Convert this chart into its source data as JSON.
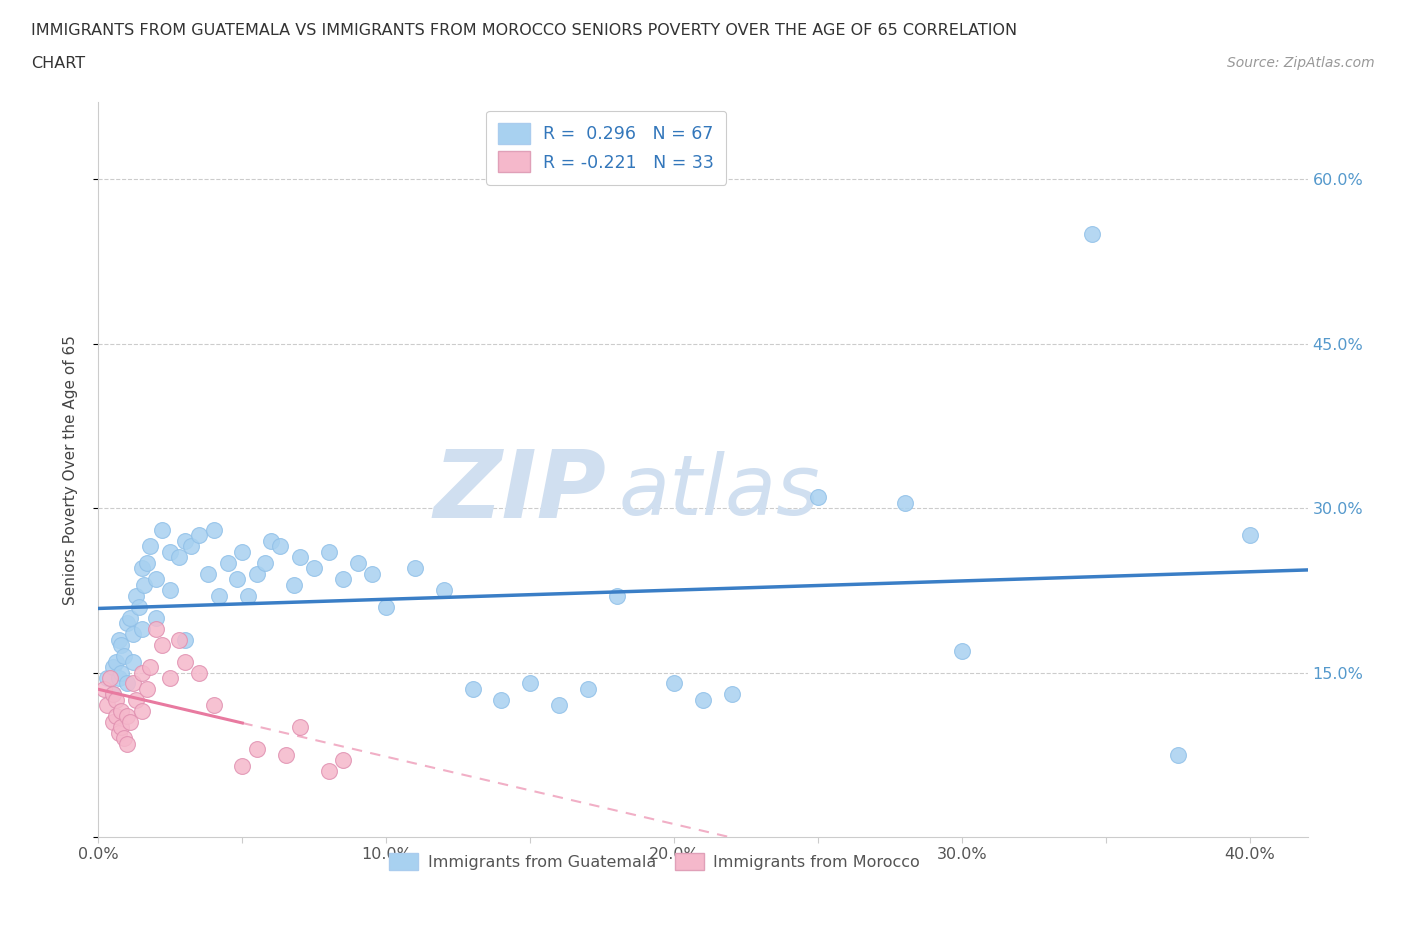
{
  "title_line1": "IMMIGRANTS FROM GUATEMALA VS IMMIGRANTS FROM MOROCCO SENIORS POVERTY OVER THE AGE OF 65 CORRELATION",
  "title_line2": "CHART",
  "source": "Source: ZipAtlas.com",
  "ylabel": "Seniors Poverty Over the Age of 65",
  "xlim": [
    0,
    42
  ],
  "ylim": [
    0,
    67
  ],
  "R_guatemala": 0.296,
  "N_guatemala": 67,
  "R_morocco": -0.221,
  "N_morocco": 33,
  "color_guatemala": "#a8d1f0",
  "color_morocco": "#f5b8cb",
  "trendline_color_guatemala": "#3a7ec6",
  "trendline_color_morocco": "#e87aa0",
  "background_color": "#ffffff",
  "watermark_color": "#d0dff0",
  "legend_label_guatemala": "Immigrants from Guatemala",
  "legend_label_morocco": "Immigrants from Morocco",
  "x_ticks": [
    0,
    10,
    20,
    30,
    40
  ],
  "x_tick_labels": [
    "0.0%",
    "10.0%",
    "20.0%",
    "30.0%",
    "40.0%"
  ],
  "y_ticks": [
    0,
    15,
    30,
    45,
    60
  ],
  "y_tick_labels_right": [
    "",
    "15.0%",
    "30.0%",
    "45.0%",
    "60.0%"
  ],
  "guatemala_x": [
    0.3,
    0.5,
    0.5,
    0.6,
    0.7,
    0.7,
    0.8,
    0.8,
    0.9,
    1.0,
    1.0,
    1.1,
    1.2,
    1.2,
    1.3,
    1.4,
    1.5,
    1.5,
    1.6,
    1.7,
    1.8,
    2.0,
    2.0,
    2.2,
    2.5,
    2.5,
    2.8,
    3.0,
    3.0,
    3.2,
    3.5,
    3.8,
    4.0,
    4.2,
    4.5,
    4.8,
    5.0,
    5.2,
    5.5,
    5.8,
    6.0,
    6.3,
    6.8,
    7.0,
    7.5,
    8.0,
    8.5,
    9.0,
    9.5,
    10.0,
    11.0,
    12.0,
    13.0,
    14.0,
    15.0,
    16.0,
    17.0,
    18.0,
    20.0,
    21.0,
    22.0,
    25.0,
    28.0,
    30.0,
    34.5,
    37.5,
    40.0
  ],
  "guatemala_y": [
    14.5,
    15.5,
    13.0,
    16.0,
    18.0,
    14.5,
    17.5,
    15.0,
    16.5,
    14.0,
    19.5,
    20.0,
    18.5,
    16.0,
    22.0,
    21.0,
    24.5,
    19.0,
    23.0,
    25.0,
    26.5,
    20.0,
    23.5,
    28.0,
    26.0,
    22.5,
    25.5,
    27.0,
    18.0,
    26.5,
    27.5,
    24.0,
    28.0,
    22.0,
    25.0,
    23.5,
    26.0,
    22.0,
    24.0,
    25.0,
    27.0,
    26.5,
    23.0,
    25.5,
    24.5,
    26.0,
    23.5,
    25.0,
    24.0,
    21.0,
    24.5,
    22.5,
    13.5,
    12.5,
    14.0,
    12.0,
    13.5,
    22.0,
    14.0,
    12.5,
    13.0,
    31.0,
    30.5,
    17.0,
    55.0,
    7.5,
    27.5
  ],
  "morocco_x": [
    0.2,
    0.3,
    0.4,
    0.5,
    0.5,
    0.6,
    0.6,
    0.7,
    0.8,
    0.8,
    0.9,
    1.0,
    1.0,
    1.1,
    1.2,
    1.3,
    1.5,
    1.5,
    1.7,
    1.8,
    2.0,
    2.2,
    2.5,
    2.8,
    3.0,
    3.5,
    4.0,
    5.0,
    5.5,
    6.5,
    7.0,
    8.0,
    8.5
  ],
  "morocco_y": [
    13.5,
    12.0,
    14.5,
    10.5,
    13.0,
    12.5,
    11.0,
    9.5,
    11.5,
    10.0,
    9.0,
    8.5,
    11.0,
    10.5,
    14.0,
    12.5,
    15.0,
    11.5,
    13.5,
    15.5,
    19.0,
    17.5,
    14.5,
    18.0,
    16.0,
    15.0,
    12.0,
    6.5,
    8.0,
    7.5,
    10.0,
    6.0,
    7.0
  ],
  "morocco_solid_x_max": 5.0
}
